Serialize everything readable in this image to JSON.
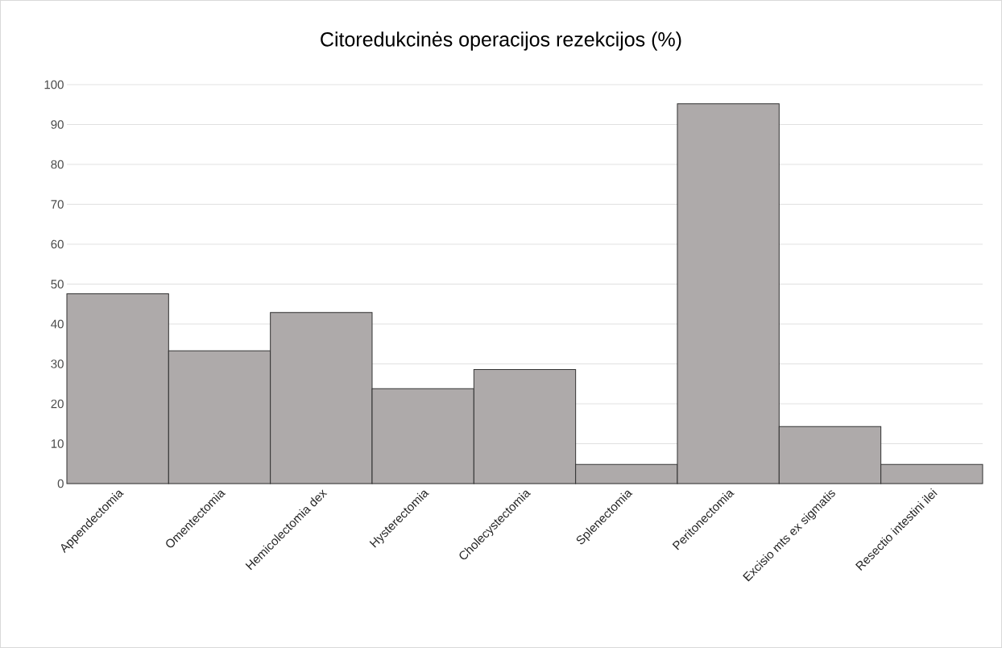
{
  "chart_data": {
    "type": "bar",
    "title": "Citoredukcinės operacijos rezekcijos (%)",
    "categories": [
      "Appendectomia",
      "Omentectomia",
      "Hemicolectomia dex",
      "Hysterectomia",
      "Cholecystectomia",
      "Splenectomia",
      "Peritonectomia",
      "Excisio mts ex sigmatis",
      "Resectio intestini ilei"
    ],
    "values": [
      47.6,
      33.3,
      42.9,
      23.8,
      28.6,
      4.8,
      95.2,
      14.3,
      4.8
    ],
    "color": "#aeaaaa",
    "ylim": [
      0,
      100
    ],
    "yticks": [
      0,
      10,
      20,
      30,
      40,
      50,
      60,
      70,
      80,
      90,
      100
    ],
    "grid": "y"
  }
}
